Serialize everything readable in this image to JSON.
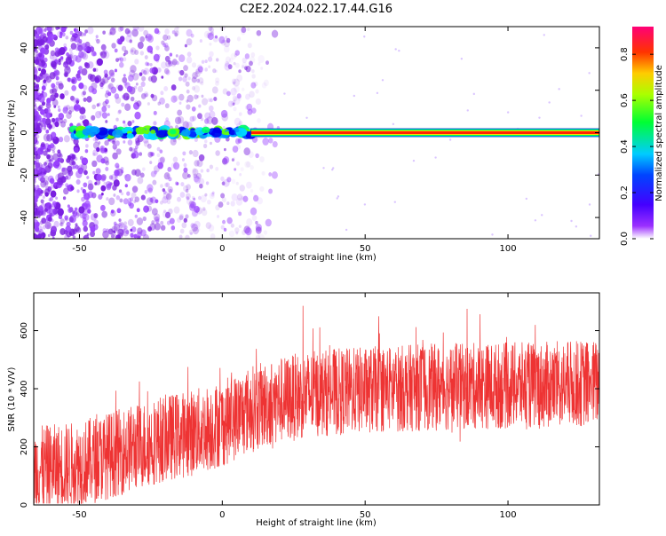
{
  "title": "C2E2.2024.022.17.44.G16",
  "chart_data": [
    {
      "type": "heatmap",
      "panel": "spectrogram",
      "xlabel": "Height of straight line (km)",
      "ylabel": "Frequency (Hz)",
      "xlim": [
        -66,
        132
      ],
      "ylim": [
        -50,
        50
      ],
      "xticks": [
        -50,
        0,
        50,
        100
      ],
      "yticks": [
        -40,
        -20,
        0,
        20,
        40
      ],
      "colorbar": {
        "label": "Normalized spectral amplitude",
        "range": [
          0.0,
          0.92
        ],
        "ticks": [
          "0.0",
          "0.2",
          "0.4",
          "0.6",
          "0.8"
        ],
        "tick_values": [
          0.0,
          0.2,
          0.4,
          0.6,
          0.8
        ],
        "colormap": [
          "#ffffff",
          "#7700ff",
          "#0000ff",
          "#00ffff",
          "#00ff00",
          "#ffff00",
          "#ff0000",
          "#ff00aa"
        ]
      },
      "signal_line": {
        "frequency_hz": 0,
        "x_range": [
          10,
          132
        ],
        "amplitude": 0.85
      },
      "noise_blobs_x_range": [
        -66,
        12
      ],
      "noise_fade_x_max": 20,
      "grid": false
    },
    {
      "type": "line",
      "panel": "snr",
      "xlabel": "Height of straight line (km)",
      "ylabel": "SNR (10 * V/V)",
      "xlim": [
        -66,
        132
      ],
      "ylim": [
        0,
        730
      ],
      "xticks": [
        -50,
        0,
        50,
        100
      ],
      "yticks": [
        0,
        200,
        400,
        600
      ],
      "color": "#ee3333",
      "trend": {
        "x": [
          -66,
          -50,
          -40,
          -30,
          -20,
          -10,
          0,
          10,
          20,
          30,
          40,
          50,
          60,
          70,
          80,
          90,
          100,
          110,
          120,
          132
        ],
        "y": [
          120,
          140,
          170,
          200,
          230,
          250,
          280,
          330,
          360,
          380,
          390,
          395,
          400,
          405,
          405,
          410,
          410,
          410,
          415,
          420
        ]
      },
      "noise_band": 150,
      "grid": false
    }
  ]
}
